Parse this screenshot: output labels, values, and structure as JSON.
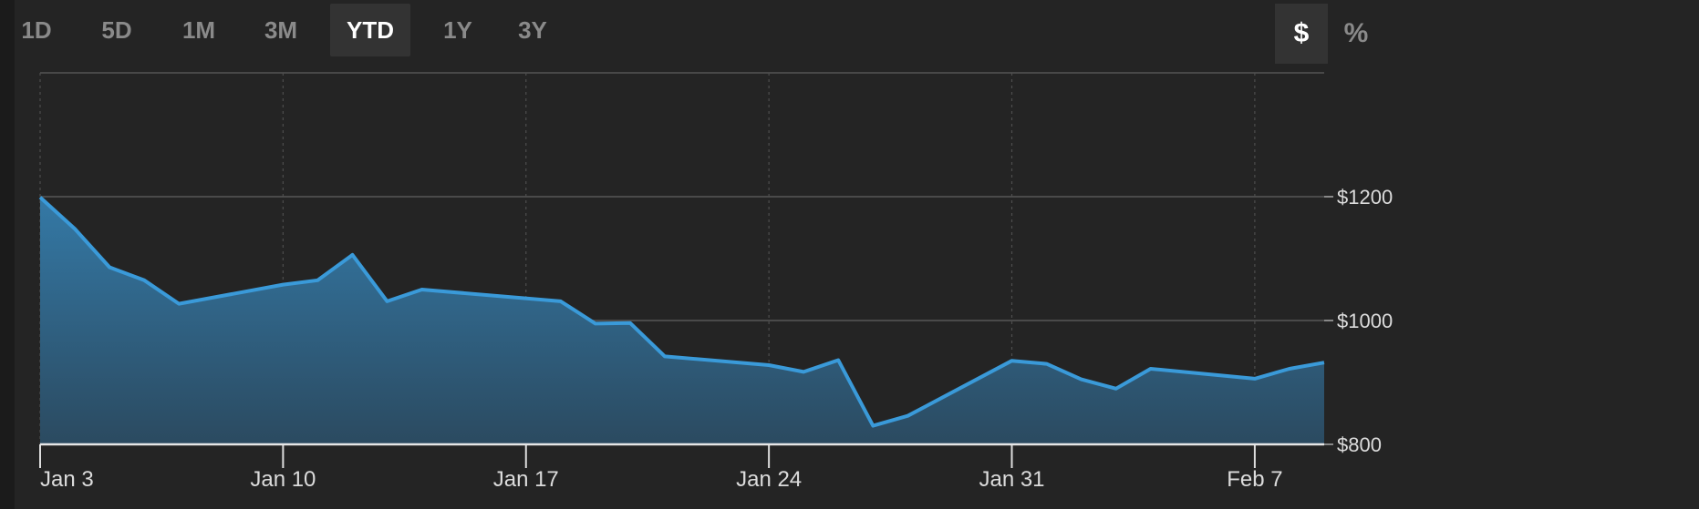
{
  "range_tabs": [
    {
      "label": "1D",
      "active": false
    },
    {
      "label": "5D",
      "active": false
    },
    {
      "label": "1M",
      "active": false
    },
    {
      "label": "3M",
      "active": false
    },
    {
      "label": "YTD",
      "active": true
    },
    {
      "label": "1Y",
      "active": false
    },
    {
      "label": "3Y",
      "active": false
    }
  ],
  "unit_toggle": {
    "dollar_label": "$",
    "percent_label": "%",
    "selected": "dollar"
  },
  "colors": {
    "line": "#3a9ad9",
    "fill_top": "#3479a6",
    "fill_bottom": "#2b4a60"
  },
  "chart_data": {
    "type": "area",
    "x_tick_labels": [
      "Jan 3",
      "Jan 10",
      "Jan 17",
      "Jan 24",
      "Jan 31",
      "Feb 7"
    ],
    "y_tick_labels": [
      "$1200",
      "$1000",
      "$800"
    ],
    "y_ticks": [
      1200,
      1000,
      800
    ],
    "ylim": [
      800,
      1400
    ],
    "x_start": "Jan 3",
    "x_end": "Feb 9",
    "grid": true,
    "series": [
      {
        "x": [
          "Jan 3",
          "Jan 4",
          "Jan 5",
          "Jan 6",
          "Jan 7",
          "Jan 10",
          "Jan 11",
          "Jan 12",
          "Jan 13",
          "Jan 14",
          "Jan 18",
          "Jan 19",
          "Jan 20",
          "Jan 21",
          "Jan 24",
          "Jan 25",
          "Jan 26",
          "Jan 27",
          "Jan 28",
          "Jan 31",
          "Feb 1",
          "Feb 2",
          "Feb 3",
          "Feb 4",
          "Feb 7",
          "Feb 8",
          "Feb 9"
        ],
        "y": [
          1199,
          1148,
          1086,
          1065,
          1027,
          1058,
          1065,
          1106,
          1031,
          1050,
          1031,
          995,
          996,
          942,
          928,
          917,
          936,
          830,
          846,
          935,
          930,
          905,
          890,
          922,
          906,
          922,
          932
        ]
      }
    ]
  }
}
